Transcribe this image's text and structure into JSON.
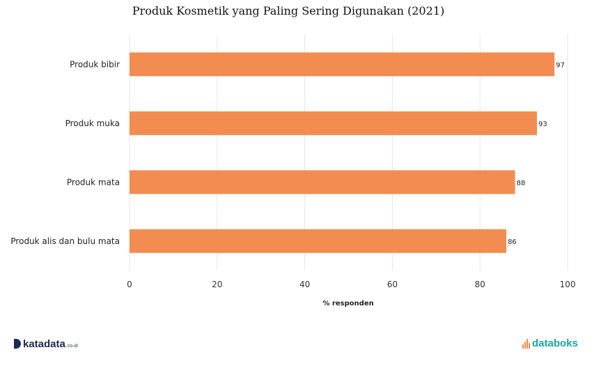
{
  "chart_data": {
    "type": "bar",
    "orientation": "horizontal",
    "title": "Produk Kosmetik yang Paling Sering Digunakan (2021)",
    "xlabel": "% responden",
    "ylabel": "",
    "categories": [
      "Produk bibir",
      "Produk muka",
      "Produk mata",
      "Produk alis dan bulu mata"
    ],
    "values": [
      97,
      93,
      88,
      86
    ],
    "xlim": [
      0,
      100
    ],
    "xticks": [
      "0",
      "20",
      "40",
      "60",
      "80",
      "100"
    ],
    "grid": true,
    "bar_color": "#f28c51"
  },
  "logos": {
    "left": "katadata",
    "left_suffix": ".co.id",
    "right": "databoks"
  }
}
